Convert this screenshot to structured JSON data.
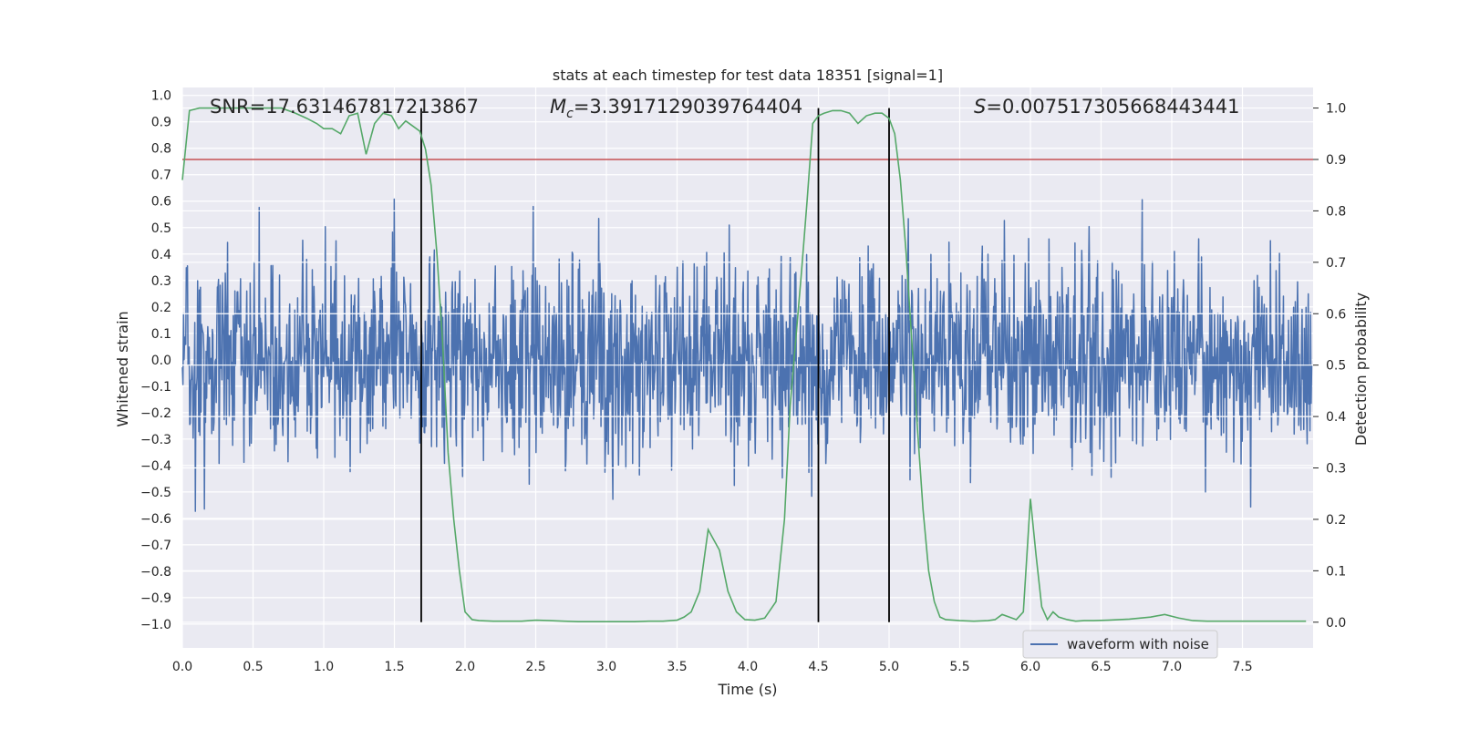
{
  "chart_data": {
    "type": "line",
    "title": "stats at each timestep for test data 18351 [signal=1]",
    "xlabel": "Time (s)",
    "ylabel": "Whitened strain",
    "y2label": "Detection probability",
    "xlim": [
      0.0,
      8.0
    ],
    "ylim": [
      -1.09,
      1.03
    ],
    "y2lim": [
      -0.05,
      1.04
    ],
    "xticks": [
      0.0,
      0.5,
      1.0,
      1.5,
      2.0,
      2.5,
      3.0,
      3.5,
      4.0,
      4.5,
      5.0,
      5.5,
      6.0,
      6.5,
      7.0,
      7.5
    ],
    "xtick_labels": [
      "0.0",
      "0.5",
      "1.0",
      "1.5",
      "2.0",
      "2.5",
      "3.0",
      "3.5",
      "4.0",
      "4.5",
      "5.0",
      "5.5",
      "6.0",
      "6.5",
      "7.0",
      "7.5"
    ],
    "yticks": [
      1.0,
      0.9,
      0.8,
      0.7,
      0.6,
      0.5,
      0.4,
      0.3,
      0.2,
      0.1,
      0.0,
      -0.1,
      -0.2,
      -0.3,
      -0.4,
      -0.5,
      -0.6,
      -0.7,
      -0.8,
      -0.9,
      -1.0
    ],
    "ytick_labels": [
      "1.0",
      "0.9",
      "0.8",
      "0.7",
      "0.6",
      "0.5",
      "0.4",
      "0.3",
      "0.2",
      "0.1",
      "0.0",
      "−0.1",
      "−0.2",
      "−0.3",
      "−0.4",
      "−0.5",
      "−0.6",
      "−0.7",
      "−0.8",
      "−0.9",
      "−1.0"
    ],
    "y2ticks": [
      0.0,
      0.1,
      0.2,
      0.3,
      0.4,
      0.5,
      0.6,
      0.7,
      0.8,
      0.9,
      1.0
    ],
    "y2tick_labels": [
      "0.0",
      "0.1",
      "0.2",
      "0.3",
      "0.4",
      "0.5",
      "0.6",
      "0.7",
      "0.8",
      "0.9",
      "1.0"
    ],
    "annotations": {
      "snr": "SNR=17.631467817213867",
      "mc_symbol": "M",
      "mc_sub": "c",
      "mc_value": "=3.3917129039764404",
      "s_symbol": "S",
      "s_value": "=0.007517305668443441"
    },
    "threshold": 0.9,
    "vertical_markers": [
      1.69,
      4.5,
      5.0
    ],
    "waveform": {
      "name": "waveform with noise",
      "color": "#4c72b0",
      "t_start": 0.0,
      "t_end": 7.99,
      "n_samples": 2000,
      "seed": 18351,
      "noise_sigma": 0.17
    },
    "probability": {
      "color": "#55a868",
      "t": [
        0.0,
        0.05,
        0.12,
        0.2,
        0.3,
        0.4,
        0.5,
        0.6,
        0.7,
        0.8,
        0.88,
        0.95,
        1.0,
        1.06,
        1.12,
        1.18,
        1.24,
        1.3,
        1.36,
        1.42,
        1.48,
        1.53,
        1.58,
        1.63,
        1.68,
        1.72,
        1.76,
        1.8,
        1.84,
        1.88,
        1.92,
        1.96,
        2.0,
        2.05,
        2.1,
        2.2,
        2.3,
        2.4,
        2.5,
        2.6,
        2.7,
        2.8,
        2.9,
        3.0,
        3.1,
        3.2,
        3.3,
        3.4,
        3.5,
        3.55,
        3.6,
        3.66,
        3.72,
        3.8,
        3.86,
        3.92,
        3.98,
        4.05,
        4.12,
        4.2,
        4.26,
        4.3,
        4.34,
        4.38,
        4.42,
        4.46,
        4.5,
        4.54,
        4.6,
        4.66,
        4.72,
        4.78,
        4.84,
        4.9,
        4.95,
        5.0,
        5.04,
        5.08,
        5.12,
        5.16,
        5.2,
        5.24,
        5.28,
        5.32,
        5.36,
        5.4,
        5.5,
        5.6,
        5.7,
        5.75,
        5.8,
        5.85,
        5.9,
        5.95,
        6.0,
        6.04,
        6.08,
        6.12,
        6.16,
        6.2,
        6.26,
        6.32,
        6.38,
        6.45,
        6.55,
        6.7,
        6.85,
        6.95,
        7.05,
        7.15,
        7.25,
        7.35,
        7.5,
        7.7,
        7.95
      ],
      "p": [
        0.86,
        0.995,
        1.0,
        1.0,
        1.0,
        1.0,
        1.0,
        1.0,
        1.0,
        0.99,
        0.98,
        0.97,
        0.96,
        0.96,
        0.95,
        0.985,
        0.99,
        0.91,
        0.97,
        0.99,
        0.985,
        0.96,
        0.975,
        0.965,
        0.955,
        0.92,
        0.85,
        0.72,
        0.55,
        0.33,
        0.2,
        0.1,
        0.02,
        0.005,
        0.003,
        0.002,
        0.002,
        0.002,
        0.004,
        0.003,
        0.002,
        0.001,
        0.001,
        0.001,
        0.001,
        0.001,
        0.002,
        0.002,
        0.004,
        0.01,
        0.02,
        0.06,
        0.18,
        0.14,
        0.06,
        0.02,
        0.005,
        0.004,
        0.008,
        0.04,
        0.2,
        0.42,
        0.55,
        0.68,
        0.82,
        0.97,
        0.985,
        0.99,
        0.995,
        0.995,
        0.99,
        0.97,
        0.985,
        0.99,
        0.99,
        0.98,
        0.95,
        0.86,
        0.72,
        0.55,
        0.38,
        0.22,
        0.1,
        0.04,
        0.01,
        0.005,
        0.003,
        0.002,
        0.003,
        0.005,
        0.015,
        0.01,
        0.005,
        0.02,
        0.24,
        0.13,
        0.03,
        0.005,
        0.02,
        0.01,
        0.005,
        0.002,
        0.003,
        0.003,
        0.004,
        0.006,
        0.01,
        0.015,
        0.008,
        0.003,
        0.002,
        0.002,
        0.002,
        0.002,
        0.002
      ]
    },
    "legend": {
      "label": "waveform with noise",
      "position": "lower-right"
    },
    "grid": true
  }
}
